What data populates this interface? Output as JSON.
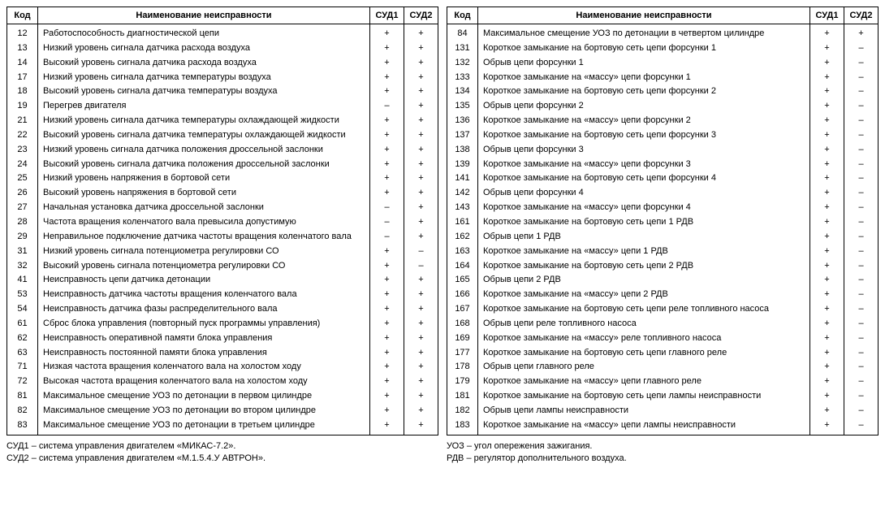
{
  "headers": {
    "code": "Код",
    "name": "Наименование неисправности",
    "sud1": "СУД1",
    "sud2": "СУД2"
  },
  "left_rows": [
    {
      "code": "12",
      "name": "Работоспособность диагностической цепи",
      "s1": "+",
      "s2": "+"
    },
    {
      "code": "13",
      "name": "Низкий уровень сигнала датчика расхода воздуха",
      "s1": "+",
      "s2": "+"
    },
    {
      "code": "14",
      "name": "Высокий уровень сигнала датчика расхода воздуха",
      "s1": "+",
      "s2": "+"
    },
    {
      "code": "17",
      "name": "Низкий уровень сигнала датчика температуры воздуха",
      "s1": "+",
      "s2": "+"
    },
    {
      "code": "18",
      "name": "Высокий уровень сигнала датчика температуры воздуха",
      "s1": "+",
      "s2": "+"
    },
    {
      "code": "19",
      "name": "Перегрев двигателя",
      "s1": "–",
      "s2": "+"
    },
    {
      "code": "21",
      "name": "Низкий уровень сигнала датчика температуры охлаждающей жидкости",
      "s1": "+",
      "s2": "+"
    },
    {
      "code": "22",
      "name": "Высокий уровень сигнала датчика температуры охлаждающей жидкости",
      "s1": "+",
      "s2": "+"
    },
    {
      "code": "23",
      "name": "Низкий уровень сигнала датчика положения дроссельной заслонки",
      "s1": "+",
      "s2": "+"
    },
    {
      "code": "24",
      "name": "Высокий уровень сигнала датчика положения дроссельной заслонки",
      "s1": "+",
      "s2": "+"
    },
    {
      "code": "25",
      "name": "Низкий уровень напряжения в бортовой сети",
      "s1": "+",
      "s2": "+"
    },
    {
      "code": "26",
      "name": "Высокий уровень напряжения в бортовой сети",
      "s1": "+",
      "s2": "+"
    },
    {
      "code": "27",
      "name": "Начальная установка датчика дроссельной заслонки",
      "s1": "–",
      "s2": "+"
    },
    {
      "code": "28",
      "name": "Частота вращения коленчатого вала превысила допустимую",
      "s1": "–",
      "s2": "+"
    },
    {
      "code": "29",
      "name": "Неправильное подключение датчика частоты вращения коленчатого вала",
      "s1": "–",
      "s2": "+"
    },
    {
      "code": "31",
      "name": "Низкий уровень сигнала потенциометра регулировки СО",
      "s1": "+",
      "s2": "–"
    },
    {
      "code": "32",
      "name": "Высокий уровень сигнала потенциометра регулировки СО",
      "s1": "+",
      "s2": "–"
    },
    {
      "code": "41",
      "name": "Неисправность цепи датчика детонации",
      "s1": "+",
      "s2": "+"
    },
    {
      "code": "53",
      "name": "Неисправность датчика частоты вращения коленчатого вала",
      "s1": "+",
      "s2": "+"
    },
    {
      "code": "54",
      "name": "Неисправность датчика фазы распределительного вала",
      "s1": "+",
      "s2": "+"
    },
    {
      "code": "61",
      "name": "Сброс блока управления (повторный пуск программы управления)",
      "s1": "+",
      "s2": "+"
    },
    {
      "code": "62",
      "name": "Неисправность оперативной памяти блока управления",
      "s1": "+",
      "s2": "+"
    },
    {
      "code": "63",
      "name": "Неисправность постоянной памяти блока управления",
      "s1": "+",
      "s2": "+"
    },
    {
      "code": "71",
      "name": "Низкая частота вращения коленчатого вала на холостом ходу",
      "s1": "+",
      "s2": "+"
    },
    {
      "code": "72",
      "name": "Высокая частота вращения коленчатого вала на холостом ходу",
      "s1": "+",
      "s2": "+"
    },
    {
      "code": "81",
      "name": "Максимальное смещение УОЗ по детонации в первом цилиндре",
      "s1": "+",
      "s2": "+"
    },
    {
      "code": "82",
      "name": "Максимальное смещение УОЗ по детонации во втором цилиндре",
      "s1": "+",
      "s2": "+"
    },
    {
      "code": "83",
      "name": "Максимальное смещение УОЗ по детонации в третьем цилиндре",
      "s1": "+",
      "s2": "+"
    }
  ],
  "right_rows": [
    {
      "code": "84",
      "name": "Максимальное смещение УОЗ по детонации в четвертом цилиндре",
      "s1": "+",
      "s2": "+"
    },
    {
      "code": "131",
      "name": "Короткое замыкание на бортовую сеть цепи форсунки 1",
      "s1": "+",
      "s2": "–"
    },
    {
      "code": "132",
      "name": "Обрыв цепи форсунки 1",
      "s1": "+",
      "s2": "–"
    },
    {
      "code": "133",
      "name": "Короткое замыкание на «массу» цепи форсунки 1",
      "s1": "+",
      "s2": "–"
    },
    {
      "code": "134",
      "name": "Короткое замыкание на бортовую сеть цепи форсунки 2",
      "s1": "+",
      "s2": "–"
    },
    {
      "code": "135",
      "name": "Обрыв цепи форсунки 2",
      "s1": "+",
      "s2": "–"
    },
    {
      "code": "136",
      "name": "Короткое замыкание на «массу» цепи форсунки 2",
      "s1": "+",
      "s2": "–"
    },
    {
      "code": "137",
      "name": "Короткое замыкание на бортовую сеть цепи форсунки 3",
      "s1": "+",
      "s2": "–"
    },
    {
      "code": "138",
      "name": "Обрыв цепи форсунки 3",
      "s1": "+",
      "s2": "–"
    },
    {
      "code": "139",
      "name": "Короткое замыкание на «массу» цепи форсунки 3",
      "s1": "+",
      "s2": "–"
    },
    {
      "code": "141",
      "name": "Короткое замыкание на бортовую сеть цепи форсунки 4",
      "s1": "+",
      "s2": "–"
    },
    {
      "code": "142",
      "name": "Обрыв цепи форсунки 4",
      "s1": "+",
      "s2": "–"
    },
    {
      "code": "143",
      "name": "Короткое замыкание на «массу» цепи форсунки 4",
      "s1": "+",
      "s2": "–"
    },
    {
      "code": "161",
      "name": "Короткое замыкание на бортовую сеть цепи 1 РДВ",
      "s1": "+",
      "s2": "–"
    },
    {
      "code": "162",
      "name": "Обрыв цепи 1 РДВ",
      "s1": "+",
      "s2": "–"
    },
    {
      "code": "163",
      "name": "Короткое замыкание на «массу» цепи 1 РДВ",
      "s1": "+",
      "s2": "–"
    },
    {
      "code": "164",
      "name": "Короткое замыкание на бортовую сеть цепи 2 РДВ",
      "s1": "+",
      "s2": "–"
    },
    {
      "code": "165",
      "name": "Обрыв цепи 2 РДВ",
      "s1": "+",
      "s2": "–"
    },
    {
      "code": "166",
      "name": "Короткое замыкание на «массу» цепи 2 РДВ",
      "s1": "+",
      "s2": "–"
    },
    {
      "code": "167",
      "name": "Короткое замыкание на бортовую сеть цепи реле топливного насоса",
      "s1": "+",
      "s2": "–"
    },
    {
      "code": "168",
      "name": "Обрыв цепи реле топливного насоса",
      "s1": "+",
      "s2": "–"
    },
    {
      "code": "169",
      "name": "Короткое замыкание на «массу» реле топливного насоса",
      "s1": "+",
      "s2": "–"
    },
    {
      "code": "177",
      "name": "Короткое замыкание на бортовую сеть цепи главного реле",
      "s1": "+",
      "s2": "–"
    },
    {
      "code": "178",
      "name": "Обрыв цепи главного реле",
      "s1": "+",
      "s2": "–"
    },
    {
      "code": "179",
      "name": "Короткое замыкание на «массу» цепи главного реле",
      "s1": "+",
      "s2": "–"
    },
    {
      "code": "181",
      "name": "Короткое замыкание на бортовую сеть цепи лампы неисправности",
      "s1": "+",
      "s2": "–"
    },
    {
      "code": "182",
      "name": "Обрыв цепи лампы неисправности",
      "s1": "+",
      "s2": "–"
    },
    {
      "code": "183",
      "name": "Короткое замыкание на «массу» цепи лампы неисправности",
      "s1": "+",
      "s2": "–"
    }
  ],
  "legend_left": [
    "СУД1 – система управления двигателем «МИКАС-7.2».",
    "СУД2 – система управления двигателем «М.1.5.4.У АВТРОН»."
  ],
  "legend_right": [
    "УОЗ – угол опережения зажигания.",
    "РДВ – регулятор дополнительного воздуха."
  ]
}
